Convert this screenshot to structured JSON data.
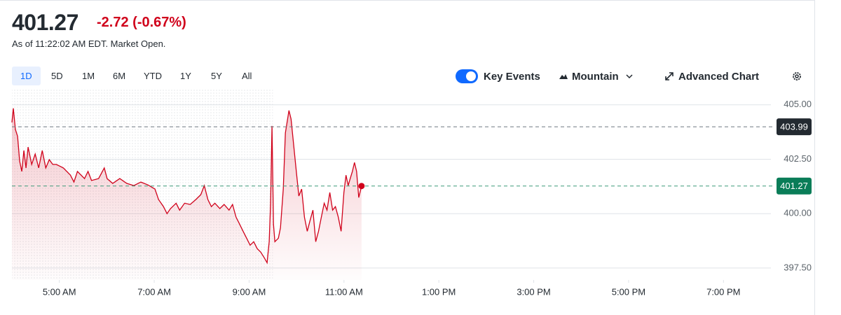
{
  "header": {
    "price": "401.27",
    "change": "-2.72",
    "change_percent": "(-0.67%)",
    "status": "As of 11:22:02 AM EDT. Market Open."
  },
  "toolbar": {
    "ranges": [
      "1D",
      "5D",
      "1M",
      "6M",
      "YTD",
      "1Y",
      "5Y",
      "All"
    ],
    "selected_range": 0,
    "key_events": "Key Events",
    "key_events_on": true,
    "chart_style": "Mountain",
    "advanced_chart": "Advanced Chart"
  },
  "chart_data": {
    "type": "area",
    "color": "#d0021b",
    "grid": true,
    "session_start": 9.5,
    "x": [
      4.0,
      4.03,
      4.074,
      4.119,
      4.163,
      4.208,
      4.253,
      4.297,
      4.342,
      4.416,
      4.49,
      4.565,
      4.639,
      4.713,
      4.788,
      4.862,
      4.936,
      5.085,
      5.233,
      5.308,
      5.382,
      5.53,
      5.605,
      5.679,
      5.828,
      5.947,
      6.006,
      6.125,
      6.273,
      6.422,
      6.571,
      6.719,
      6.868,
      7.016,
      7.091,
      7.195,
      7.269,
      7.343,
      7.462,
      7.536,
      7.64,
      7.759,
      7.878,
      7.982,
      8.056,
      8.131,
      8.205,
      8.279,
      8.383,
      8.473,
      8.577,
      8.651,
      8.725,
      8.799,
      8.874,
      8.948,
      9.022,
      9.097,
      9.171,
      9.245,
      9.32,
      9.379,
      9.424,
      9.453,
      9.483,
      9.513,
      9.543,
      9.617,
      9.661,
      9.721,
      9.765,
      9.84,
      9.884,
      9.929,
      9.988,
      10.048,
      10.107,
      10.167,
      10.226,
      10.285,
      10.345,
      10.404,
      10.464,
      10.523,
      10.583,
      10.642,
      10.702,
      10.761,
      10.82,
      10.88,
      10.939,
      10.999,
      11.043,
      11.088,
      11.132,
      11.177,
      11.221,
      11.266,
      11.311,
      11.37
    ],
    "values": [
      404.19,
      404.84,
      403.87,
      403.55,
      402.42,
      401.94,
      402.9,
      402.1,
      403.06,
      402.26,
      402.74,
      402.1,
      402.9,
      402.1,
      402.48,
      402.26,
      402.26,
      402.1,
      401.77,
      401.45,
      401.94,
      401.61,
      401.94,
      401.52,
      401.61,
      402.1,
      401.61,
      401.39,
      401.61,
      401.39,
      401.29,
      401.45,
      401.32,
      401.13,
      400.65,
      400.32,
      400.0,
      400.23,
      400.48,
      400.16,
      400.48,
      400.42,
      400.65,
      400.87,
      401.29,
      400.65,
      400.32,
      400.48,
      400.23,
      400.42,
      400.16,
      400.42,
      399.84,
      399.52,
      399.19,
      398.87,
      398.55,
      398.71,
      398.39,
      398.23,
      397.97,
      397.74,
      398.71,
      400.48,
      404.03,
      399.52,
      398.71,
      398.87,
      399.35,
      401.13,
      403.71,
      404.74,
      404.35,
      403.39,
      402.1,
      400.81,
      401.13,
      399.84,
      399.19,
      399.68,
      400.16,
      398.71,
      399.19,
      399.84,
      400.48,
      400.16,
      400.97,
      400.16,
      400.32,
      399.84,
      399.19,
      400.97,
      401.77,
      401.29,
      401.61,
      401.94,
      402.35,
      401.94,
      400.74,
      401.27
    ],
    "xlim": [
      4,
      20
    ],
    "xticks": [
      {
        "value": 5,
        "label": "5:00 AM"
      },
      {
        "value": 7,
        "label": "7:00 AM"
      },
      {
        "value": 9,
        "label": "9:00 AM"
      },
      {
        "value": 11,
        "label": "11:00 AM"
      },
      {
        "value": 13,
        "label": "1:00 PM"
      },
      {
        "value": 15,
        "label": "3:00 PM"
      },
      {
        "value": 17,
        "label": "5:00 PM"
      },
      {
        "value": 19,
        "label": "7:00 PM"
      }
    ],
    "ylim": [
      396.95,
      405.7
    ],
    "yticks": [
      {
        "value": 397.5,
        "label": "397.50"
      },
      {
        "value": 400,
        "label": "400.00"
      },
      {
        "value": 402.5,
        "label": "402.50"
      },
      {
        "value": 405,
        "label": "405.00"
      }
    ],
    "reference_lines": [
      {
        "value": 403.99,
        "color": "#6e7780",
        "label_color": "#232a31"
      },
      {
        "value": 401.27,
        "color": "#3d9b7a",
        "label_color": "#0a7d58"
      }
    ]
  }
}
